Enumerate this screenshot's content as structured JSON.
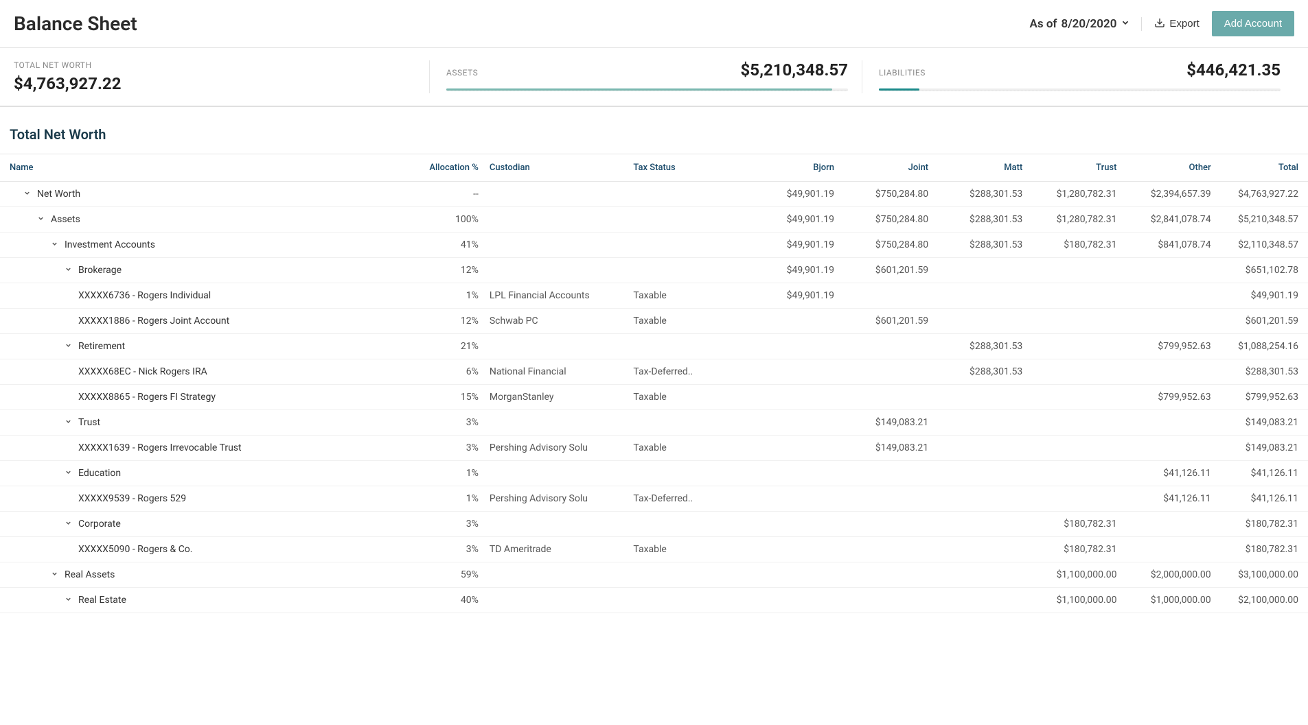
{
  "header": {
    "title": "Balance Sheet",
    "date_prefix": "As of ",
    "date": "8/20/2020",
    "export_label": "Export",
    "add_account_label": "Add Account"
  },
  "summary": {
    "net_worth": {
      "label": "TOTAL NET WORTH",
      "value": "$4,763,927.22"
    },
    "assets": {
      "label": "ASSETS",
      "value": "$5,210,348.57",
      "bar_pct": 96,
      "bar_color": "#7ab8b0"
    },
    "liabilities": {
      "label": "LIABILITIES",
      "value": "$446,421.35",
      "bar_pct": 10,
      "bar_color": "#1a8a8a"
    }
  },
  "table": {
    "section_title": "Total Net Worth",
    "columns": [
      "Name",
      "Allocation %",
      "Custodian",
      "Tax Status",
      "Bjorn",
      "Joint",
      "Matt",
      "Trust",
      "Other",
      "Total"
    ],
    "rows": [
      {
        "indent": 1,
        "chevron": true,
        "name": "Net Worth",
        "alloc": "--",
        "custodian": "",
        "tax": "",
        "bjorn": "$49,901.19",
        "joint": "$750,284.80",
        "matt": "$288,301.53",
        "trust": "$1,280,782.31",
        "other": "$2,394,657.39",
        "total": "$4,763,927.22"
      },
      {
        "indent": 2,
        "chevron": true,
        "name": "Assets",
        "alloc": "100%",
        "custodian": "",
        "tax": "",
        "bjorn": "$49,901.19",
        "joint": "$750,284.80",
        "matt": "$288,301.53",
        "trust": "$1,280,782.31",
        "other": "$2,841,078.74",
        "total": "$5,210,348.57"
      },
      {
        "indent": 3,
        "chevron": true,
        "name": "Investment Accounts",
        "alloc": "41%",
        "custodian": "",
        "tax": "",
        "bjorn": "$49,901.19",
        "joint": "$750,284.80",
        "matt": "$288,301.53",
        "trust": "$180,782.31",
        "other": "$841,078.74",
        "total": "$2,110,348.57"
      },
      {
        "indent": 4,
        "chevron": true,
        "name": "Brokerage",
        "alloc": "12%",
        "custodian": "",
        "tax": "",
        "bjorn": "$49,901.19",
        "joint": "$601,201.59",
        "matt": "",
        "trust": "",
        "other": "",
        "total": "$651,102.78"
      },
      {
        "indent": 5,
        "chevron": false,
        "name": "XXXXX6736 - Rogers Individual",
        "alloc": "1%",
        "custodian": "LPL Financial Accounts",
        "tax": "Taxable",
        "bjorn": "$49,901.19",
        "joint": "",
        "matt": "",
        "trust": "",
        "other": "",
        "total": "$49,901.19"
      },
      {
        "indent": 5,
        "chevron": false,
        "name": "XXXXX1886 - Rogers Joint Account",
        "alloc": "12%",
        "custodian": "Schwab PC",
        "tax": "Taxable",
        "bjorn": "",
        "joint": "$601,201.59",
        "matt": "",
        "trust": "",
        "other": "",
        "total": "$601,201.59"
      },
      {
        "indent": 4,
        "chevron": true,
        "name": "Retirement",
        "alloc": "21%",
        "custodian": "",
        "tax": "",
        "bjorn": "",
        "joint": "",
        "matt": "$288,301.53",
        "trust": "",
        "other": "$799,952.63",
        "total": "$1,088,254.16"
      },
      {
        "indent": 5,
        "chevron": false,
        "name": "XXXXX68EC - Nick Rogers IRA",
        "alloc": "6%",
        "custodian": "National Financial",
        "tax": "Tax-Deferred..",
        "bjorn": "",
        "joint": "",
        "matt": "$288,301.53",
        "trust": "",
        "other": "",
        "total": "$288,301.53"
      },
      {
        "indent": 5,
        "chevron": false,
        "name": "XXXXX8865 - Rogers FI Strategy",
        "alloc": "15%",
        "custodian": "MorganStanley",
        "tax": "Taxable",
        "bjorn": "",
        "joint": "",
        "matt": "",
        "trust": "",
        "other": "$799,952.63",
        "total": "$799,952.63"
      },
      {
        "indent": 4,
        "chevron": true,
        "name": "Trust",
        "alloc": "3%",
        "custodian": "",
        "tax": "",
        "bjorn": "",
        "joint": "$149,083.21",
        "matt": "",
        "trust": "",
        "other": "",
        "total": "$149,083.21"
      },
      {
        "indent": 5,
        "chevron": false,
        "name": "XXXXX1639 - Rogers Irrevocable Trust",
        "alloc": "3%",
        "custodian": "Pershing Advisory Solu",
        "tax": "Taxable",
        "bjorn": "",
        "joint": "$149,083.21",
        "matt": "",
        "trust": "",
        "other": "",
        "total": "$149,083.21"
      },
      {
        "indent": 4,
        "chevron": true,
        "name": "Education",
        "alloc": "1%",
        "custodian": "",
        "tax": "",
        "bjorn": "",
        "joint": "",
        "matt": "",
        "trust": "",
        "other": "$41,126.11",
        "total": "$41,126.11"
      },
      {
        "indent": 5,
        "chevron": false,
        "name": "XXXXX9539 - Rogers 529",
        "alloc": "1%",
        "custodian": "Pershing Advisory Solu",
        "tax": "Tax-Deferred..",
        "bjorn": "",
        "joint": "",
        "matt": "",
        "trust": "",
        "other": "$41,126.11",
        "total": "$41,126.11"
      },
      {
        "indent": 4,
        "chevron": true,
        "name": "Corporate",
        "alloc": "3%",
        "custodian": "",
        "tax": "",
        "bjorn": "",
        "joint": "",
        "matt": "",
        "trust": "$180,782.31",
        "other": "",
        "total": "$180,782.31"
      },
      {
        "indent": 5,
        "chevron": false,
        "name": "XXXXX5090 - Rogers & Co.",
        "alloc": "3%",
        "custodian": "TD Ameritrade",
        "tax": "Taxable",
        "bjorn": "",
        "joint": "",
        "matt": "",
        "trust": "$180,782.31",
        "other": "",
        "total": "$180,782.31"
      },
      {
        "indent": 3,
        "chevron": true,
        "name": "Real Assets",
        "alloc": "59%",
        "custodian": "",
        "tax": "",
        "bjorn": "",
        "joint": "",
        "matt": "",
        "trust": "$1,100,000.00",
        "other": "$2,000,000.00",
        "total": "$3,100,000.00"
      },
      {
        "indent": 4,
        "chevron": true,
        "name": "Real Estate",
        "alloc": "40%",
        "custodian": "",
        "tax": "",
        "bjorn": "",
        "joint": "",
        "matt": "",
        "trust": "$1,100,000.00",
        "other": "$1,000,000.00",
        "total": "$2,100,000.00"
      }
    ]
  },
  "colors": {
    "accent": "#6aaaaa",
    "text_dark": "#2a2a2a",
    "text_heading": "#1a3a4a",
    "border": "#e6e6e6"
  }
}
